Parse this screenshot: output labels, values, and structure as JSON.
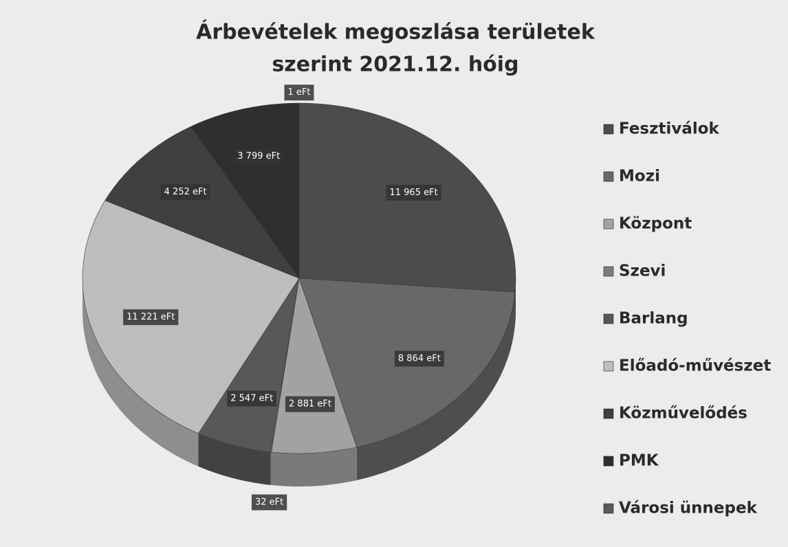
{
  "chart_data": {
    "type": "pie",
    "title": [
      "Árbevételek megoszlása területek",
      "szerint 2021.12. hóig"
    ],
    "categories": [
      "Fesztiválok",
      "Mozi",
      "Központ",
      "Szevi",
      "Barlang",
      "Előadó-művészet",
      "Közművelődés",
      "PMK",
      "Városi ünnepek"
    ],
    "values": [
      11965,
      8864,
      2881,
      32,
      2547,
      11221,
      4252,
      3799,
      1
    ],
    "value_labels": [
      "11 965 eFt",
      "8 864 eFt",
      "2 881 eFt",
      "32 eFt",
      "2 547 eFt",
      "11 221 eFt",
      "4 252 eFt",
      "3 799 eFt",
      "1 eFt"
    ],
    "colors": [
      "#4c4c4c",
      "#686868",
      "#a2a2a2",
      "#7c7c7c",
      "#585858",
      "#bdbdbd",
      "#404040",
      "#2f2f2f",
      "#5a5a5a"
    ],
    "legend": "right"
  }
}
